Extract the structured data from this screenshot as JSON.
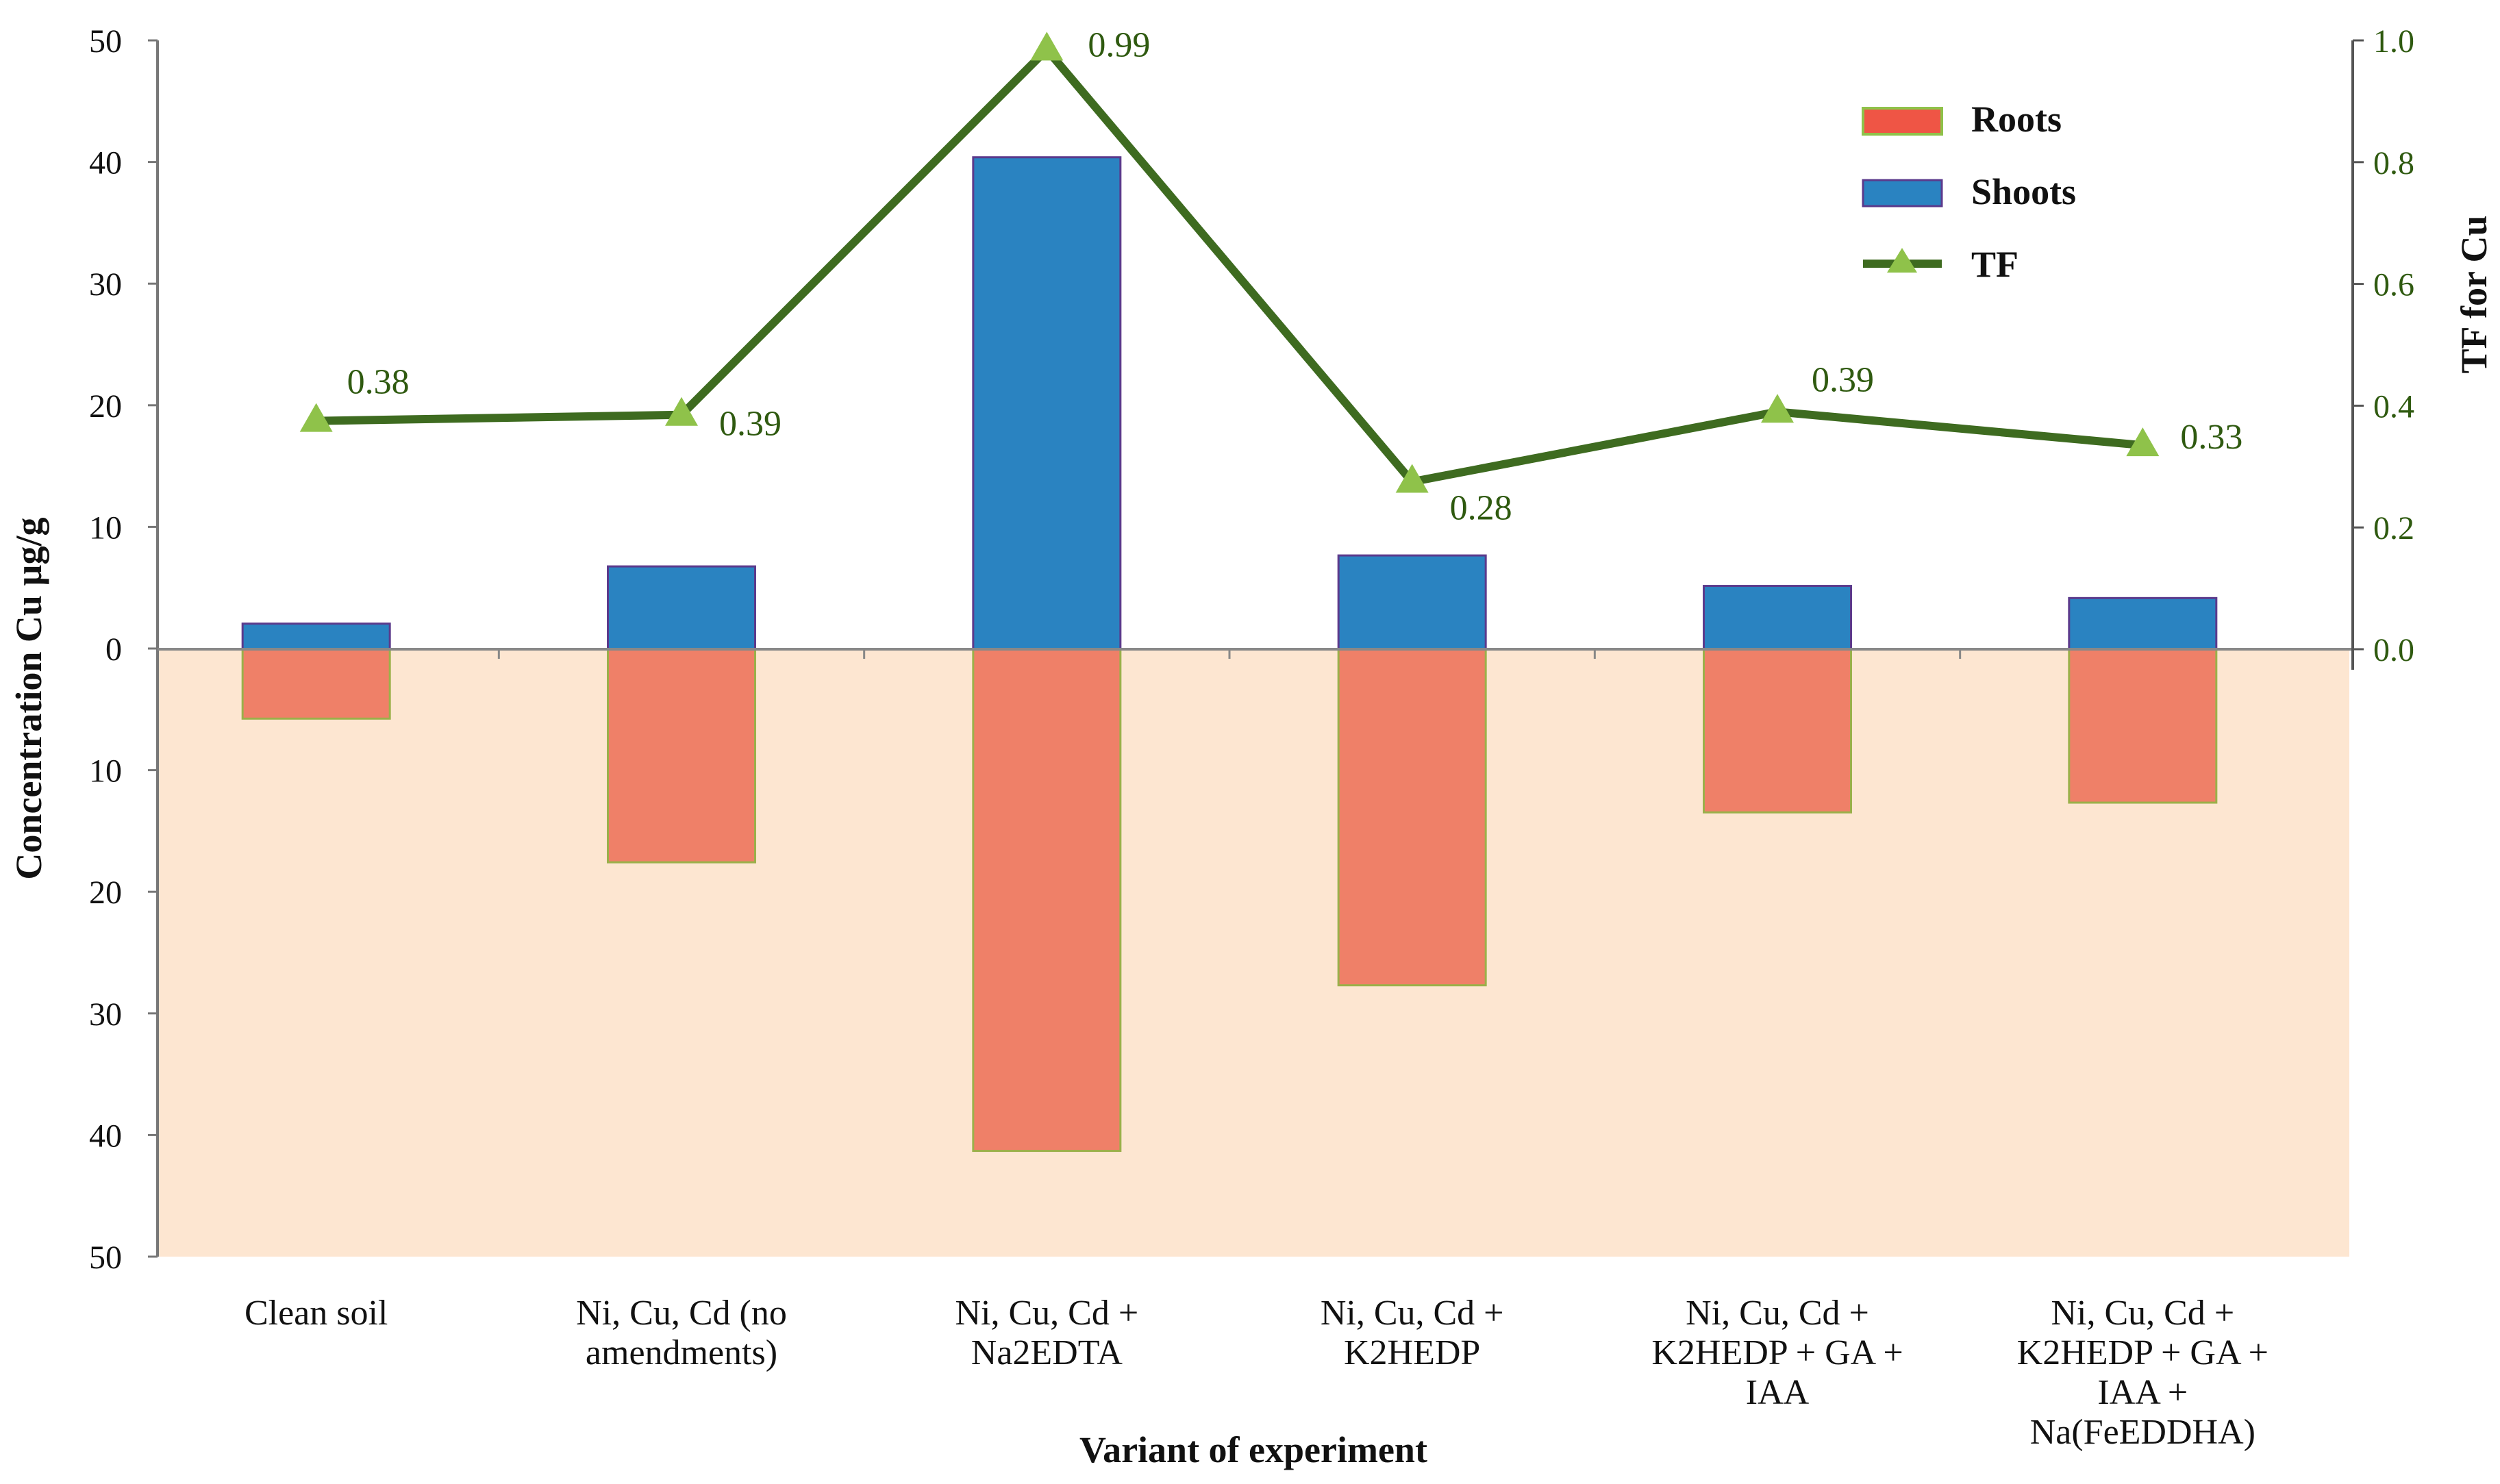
{
  "chart_data": {
    "type": "bar",
    "title": "",
    "xlabel": "Variant of experiment",
    "ylabel": "Concentration Cu  µg/g",
    "y2label": "TF for Cu",
    "ylim": [
      -50,
      50
    ],
    "y2lim": [
      0,
      1.0
    ],
    "left_ticks": [
      "50",
      "40",
      "30",
      "20",
      "10",
      "0",
      "10",
      "20",
      "30",
      "40",
      "50"
    ],
    "right_ticks": [
      "1.0",
      "0.8",
      "0.6",
      "0.4",
      "0.2",
      "0.0"
    ],
    "categories": [
      [
        "Clean soil"
      ],
      [
        "Ni, Cu, Cd (no",
        "amendments)"
      ],
      [
        "Ni, Cu, Cd +",
        "Na2EDTA"
      ],
      [
        "Ni, Cu, Cd +",
        "K2HEDP"
      ],
      [
        "Ni, Cu, Cd +",
        "K2HEDP + GA +",
        "IAA"
      ],
      [
        "Ni, Cu, Cd +",
        "K2HEDP + GA +",
        "IAA +",
        "Na(FeEDDHA)"
      ]
    ],
    "series": [
      {
        "name": "Roots",
        "axis": "left",
        "kind": "bar-down",
        "color": "#ef8068",
        "values": [
          5.7,
          17.5,
          41.2,
          27.6,
          13.4,
          12.6
        ]
      },
      {
        "name": "Shoots",
        "axis": "left",
        "kind": "bar-up",
        "color": "#2a83c1",
        "values": [
          2.1,
          6.8,
          40.4,
          7.7,
          5.2,
          4.2
        ]
      },
      {
        "name": "TF",
        "axis": "right",
        "kind": "line",
        "color": "#3e6b20",
        "marker_color": "#8fc24a",
        "values": [
          0.375,
          0.385,
          0.985,
          0.275,
          0.39,
          0.335
        ],
        "labels": [
          "0.38",
          "0.39",
          "0.99",
          "0.28",
          "0.39",
          "0.33"
        ]
      }
    ],
    "legend_position": "top-right",
    "lower_region_color": "#fde6d1"
  }
}
